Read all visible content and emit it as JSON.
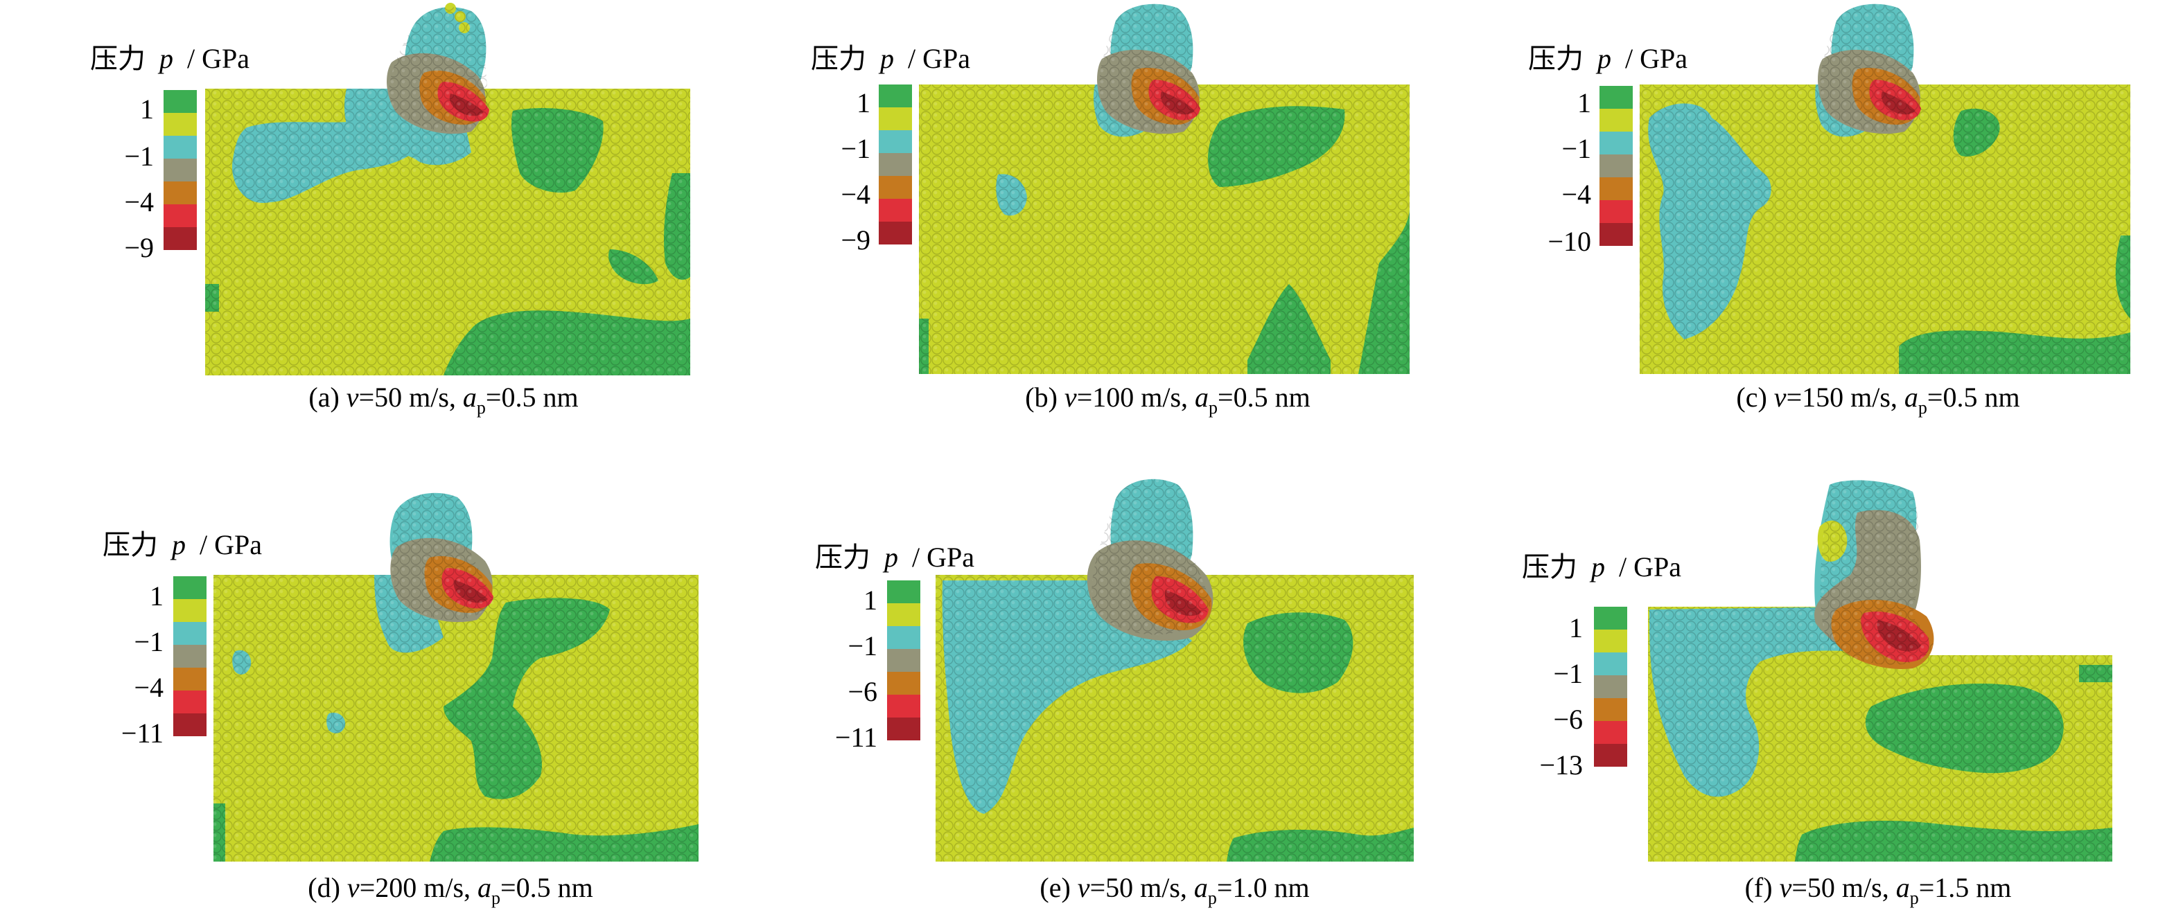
{
  "colors": {
    "green": "#3cae52",
    "yellow": "#c9d62a",
    "cyan": "#5ec2c0",
    "gray": "#949479",
    "orange": "#c5791f",
    "red": "#e0303a",
    "darkred": "#a6222a"
  },
  "legend_colors": [
    "green",
    "yellow",
    "cyan",
    "gray",
    "orange",
    "red",
    "darkred"
  ],
  "panels": [
    {
      "id": "a",
      "legend": {
        "zh": "压力",
        "var": "p",
        "unit": "/ GPa",
        "ticks": [
          "1",
          "−1",
          "−4",
          "−9"
        ]
      },
      "caption": {
        "label": "(a) ",
        "v_sym": "v",
        "v": "=50 m/s, ",
        "a_sym": "a",
        "a_sub": "p",
        "a": "=0.5 nm"
      }
    },
    {
      "id": "b",
      "legend": {
        "zh": "压力",
        "var": "p",
        "unit": "/ GPa",
        "ticks": [
          "1",
          "−1",
          "−4",
          "−9"
        ]
      },
      "caption": {
        "label": "(b) ",
        "v_sym": "v",
        "v": "=100 m/s, ",
        "a_sym": "a",
        "a_sub": "p",
        "a": "=0.5 nm"
      }
    },
    {
      "id": "c",
      "legend": {
        "zh": "压力",
        "var": "p",
        "unit": "/ GPa",
        "ticks": [
          "1",
          "−1",
          "−4",
          "−10"
        ]
      },
      "caption": {
        "label": "(c) ",
        "v_sym": "v",
        "v": "=150 m/s, ",
        "a_sym": "a",
        "a_sub": "p",
        "a": "=0.5 nm"
      }
    },
    {
      "id": "d",
      "legend": {
        "zh": "压力",
        "var": "p",
        "unit": "/ GPa",
        "ticks": [
          "1",
          "−1",
          "−4",
          "−11"
        ]
      },
      "caption": {
        "label": "(d) ",
        "v_sym": "v",
        "v": "=200 m/s, ",
        "a_sym": "a",
        "a_sub": "p",
        "a": "=0.5 nm"
      }
    },
    {
      "id": "e",
      "legend": {
        "zh": "压力",
        "var": "p",
        "unit": "/ GPa",
        "ticks": [
          "1",
          "−1",
          "−6",
          "−11"
        ]
      },
      "caption": {
        "label": "(e) ",
        "v_sym": "v",
        "v": "=50 m/s, ",
        "a_sym": "a",
        "a_sub": "p",
        "a": "=1.0 nm"
      }
    },
    {
      "id": "f",
      "legend": {
        "zh": "压力",
        "var": "p",
        "unit": "/ GPa",
        "ticks": [
          "1",
          "−1",
          "−6",
          "−13"
        ]
      },
      "caption": {
        "label": "(f) ",
        "v_sym": "v",
        "v": "=50 m/s, ",
        "a_sym": "a",
        "a_sub": "p",
        "a": "=1.5 nm"
      }
    }
  ]
}
